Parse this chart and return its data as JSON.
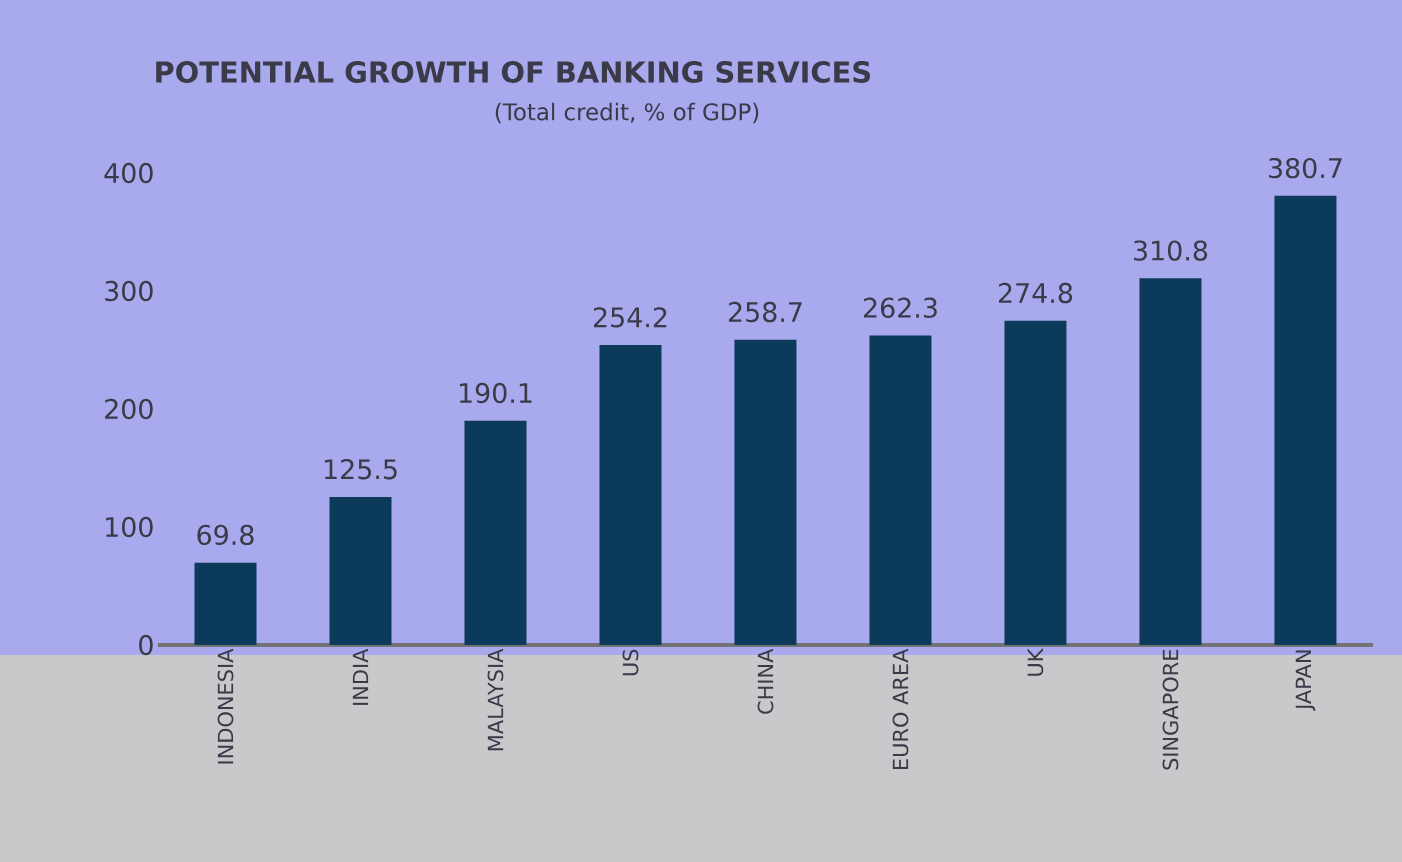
{
  "chart_data": {
    "type": "bar",
    "title": "POTENTIAL GROWTH OF BANKING SERVICES",
    "subtitle": "(Total credit, % of GDP)",
    "categories": [
      "INDONESIA",
      "INDIA",
      "MALAYSIA",
      "US",
      "CHINA",
      "EURO AREA",
      "UK",
      "SINGAPORE",
      "JAPAN"
    ],
    "values": [
      69.8,
      125.5,
      190.1,
      254.2,
      258.7,
      262.3,
      274.8,
      310.8,
      380.7
    ],
    "color": "#0b3a5a",
    "ylim": [
      0,
      400
    ],
    "yticks": [
      0,
      100,
      200,
      300,
      400
    ],
    "data_labels": true,
    "grid": false
  }
}
